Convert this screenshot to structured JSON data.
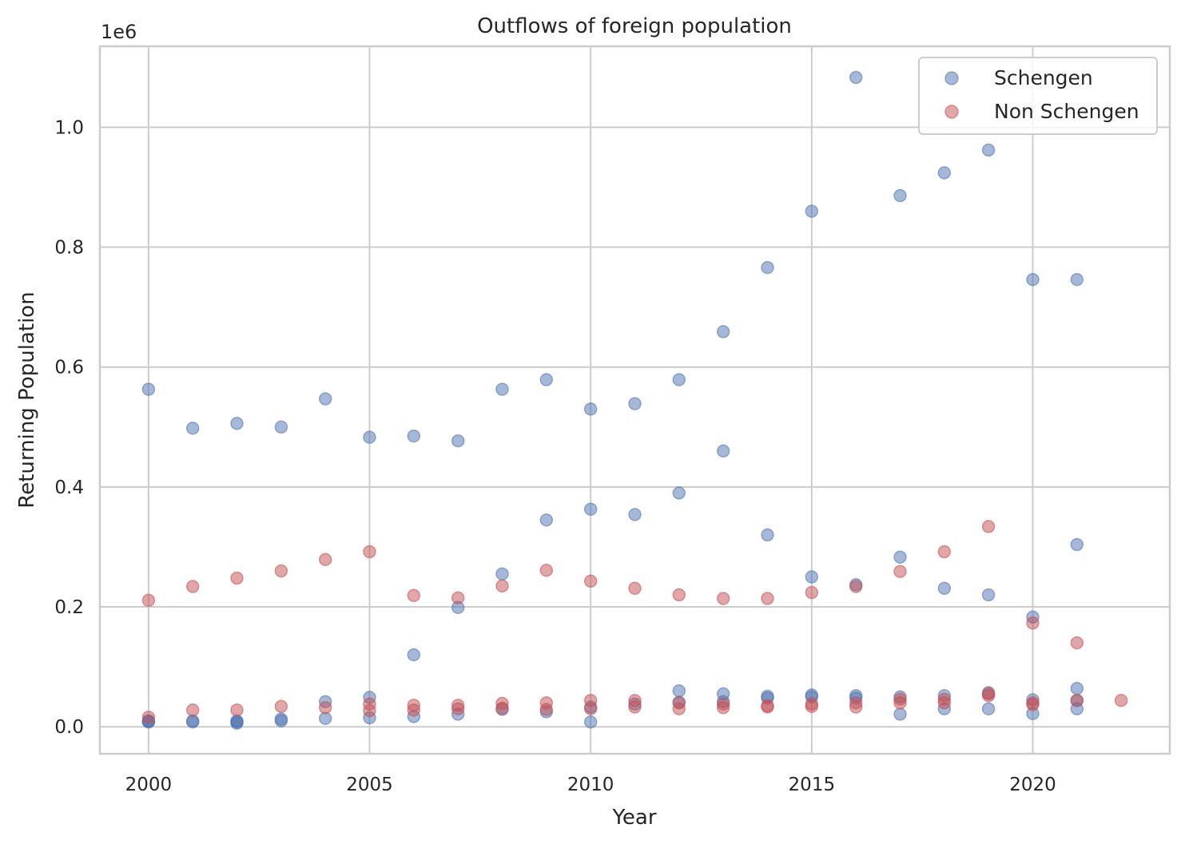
{
  "chart_data": {
    "type": "scatter",
    "title": "Outflows of foreign population",
    "xlabel": "Year",
    "ylabel": "Returning Population",
    "y_offset_label": "1e6",
    "xlim": [
      1998.9,
      2023.1
    ],
    "ylim": [
      -45000,
      1135000
    ],
    "x_ticks": [
      2000,
      2005,
      2010,
      2015,
      2020
    ],
    "y_ticks": [
      0,
      200000,
      400000,
      600000,
      800000,
      1000000
    ],
    "y_tick_labels": [
      "0.0",
      "0.2",
      "0.4",
      "0.6",
      "0.8",
      "1.0"
    ],
    "grid": true,
    "legend": "top-right",
    "series": [
      {
        "name": "Schengen",
        "color": "#4c72b0",
        "points": [
          [
            2000,
            563000
          ],
          [
            2000,
            10000
          ],
          [
            2000,
            9000
          ],
          [
            2000,
            8000
          ],
          [
            2001,
            498000
          ],
          [
            2001,
            10000
          ],
          [
            2001,
            8000
          ],
          [
            2002,
            506000
          ],
          [
            2002,
            10000
          ],
          [
            2002,
            8000
          ],
          [
            2002,
            6000
          ],
          [
            2003,
            500000
          ],
          [
            2003,
            13000
          ],
          [
            2003,
            10000
          ],
          [
            2004,
            547000
          ],
          [
            2004,
            42000
          ],
          [
            2004,
            14000
          ],
          [
            2005,
            483000
          ],
          [
            2005,
            49000
          ],
          [
            2005,
            15000
          ],
          [
            2006,
            485000
          ],
          [
            2006,
            120000
          ],
          [
            2006,
            17000
          ],
          [
            2007,
            477000
          ],
          [
            2007,
            199000
          ],
          [
            2007,
            21000
          ],
          [
            2008,
            563000
          ],
          [
            2008,
            255000
          ],
          [
            2008,
            29000
          ],
          [
            2009,
            579000
          ],
          [
            2009,
            345000
          ],
          [
            2009,
            25000
          ],
          [
            2010,
            530000
          ],
          [
            2010,
            363000
          ],
          [
            2010,
            33000
          ],
          [
            2010,
            8000
          ],
          [
            2011,
            539000
          ],
          [
            2011,
            354000
          ],
          [
            2011,
            38000
          ],
          [
            2012,
            579000
          ],
          [
            2012,
            390000
          ],
          [
            2012,
            60000
          ],
          [
            2012,
            41000
          ],
          [
            2013,
            659000
          ],
          [
            2013,
            460000
          ],
          [
            2013,
            55000
          ],
          [
            2013,
            42000
          ],
          [
            2014,
            766000
          ],
          [
            2014,
            320000
          ],
          [
            2014,
            51000
          ],
          [
            2014,
            48000
          ],
          [
            2015,
            860000
          ],
          [
            2015,
            250000
          ],
          [
            2015,
            53000
          ],
          [
            2015,
            50000
          ],
          [
            2016,
            1083000
          ],
          [
            2016,
            237000
          ],
          [
            2016,
            52000
          ],
          [
            2016,
            48000
          ],
          [
            2017,
            886000
          ],
          [
            2017,
            283000
          ],
          [
            2017,
            50000
          ],
          [
            2017,
            21000
          ],
          [
            2018,
            924000
          ],
          [
            2018,
            231000
          ],
          [
            2018,
            52000
          ],
          [
            2018,
            30000
          ],
          [
            2019,
            962000
          ],
          [
            2019,
            220000
          ],
          [
            2019,
            57000
          ],
          [
            2019,
            30000
          ],
          [
            2020,
            746000
          ],
          [
            2020,
            183000
          ],
          [
            2020,
            45000
          ],
          [
            2020,
            22000
          ],
          [
            2021,
            746000
          ],
          [
            2021,
            304000
          ],
          [
            2021,
            64000
          ],
          [
            2021,
            44000
          ],
          [
            2021,
            30000
          ]
        ]
      },
      {
        "name": "Non Schengen",
        "color": "#c44e52",
        "points": [
          [
            2000,
            211000
          ],
          [
            2000,
            16000
          ],
          [
            2001,
            234000
          ],
          [
            2001,
            28000
          ],
          [
            2002,
            248000
          ],
          [
            2002,
            28000
          ],
          [
            2003,
            260000
          ],
          [
            2003,
            34000
          ],
          [
            2004,
            279000
          ],
          [
            2004,
            32000
          ],
          [
            2005,
            292000
          ],
          [
            2005,
            38000
          ],
          [
            2005,
            27000
          ],
          [
            2006,
            219000
          ],
          [
            2006,
            36000
          ],
          [
            2006,
            28000
          ],
          [
            2007,
            215000
          ],
          [
            2007,
            36000
          ],
          [
            2007,
            30000
          ],
          [
            2008,
            235000
          ],
          [
            2008,
            39000
          ],
          [
            2008,
            31000
          ],
          [
            2009,
            261000
          ],
          [
            2009,
            40000
          ],
          [
            2009,
            29000
          ],
          [
            2010,
            243000
          ],
          [
            2010,
            44000
          ],
          [
            2010,
            30000
          ],
          [
            2011,
            231000
          ],
          [
            2011,
            44000
          ],
          [
            2011,
            33000
          ],
          [
            2012,
            220000
          ],
          [
            2012,
            40000
          ],
          [
            2012,
            30000
          ],
          [
            2013,
            214000
          ],
          [
            2013,
            38000
          ],
          [
            2013,
            32000
          ],
          [
            2014,
            214000
          ],
          [
            2014,
            35000
          ],
          [
            2014,
            33000
          ],
          [
            2015,
            224000
          ],
          [
            2015,
            38000
          ],
          [
            2015,
            34000
          ],
          [
            2016,
            234000
          ],
          [
            2016,
            40000
          ],
          [
            2016,
            33000
          ],
          [
            2017,
            259000
          ],
          [
            2017,
            46000
          ],
          [
            2017,
            40000
          ],
          [
            2018,
            292000
          ],
          [
            2018,
            46000
          ],
          [
            2018,
            40000
          ],
          [
            2019,
            334000
          ],
          [
            2019,
            55000
          ],
          [
            2019,
            52000
          ],
          [
            2020,
            173000
          ],
          [
            2020,
            40000
          ],
          [
            2020,
            37000
          ],
          [
            2021,
            140000
          ],
          [
            2021,
            44000
          ],
          [
            2022,
            44000
          ]
        ]
      }
    ]
  }
}
